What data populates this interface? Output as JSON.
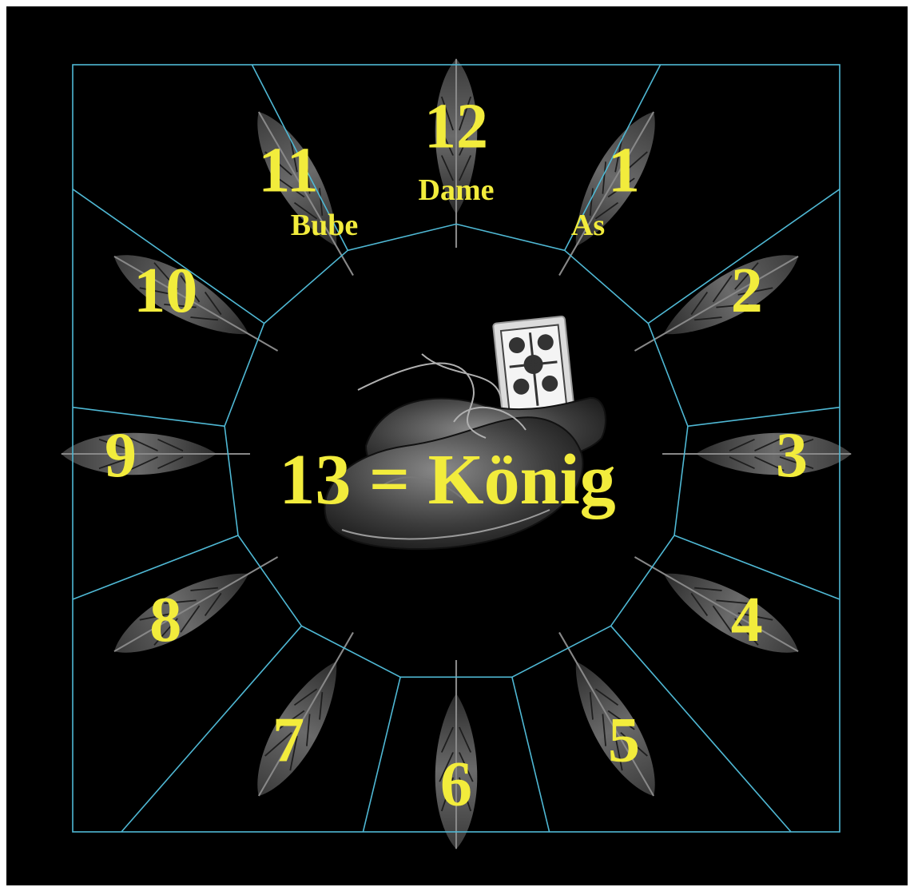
{
  "colors": {
    "background": "#000000",
    "lines": "#4fb8d4",
    "text": "#f2ec3c"
  },
  "hours": [
    {
      "number": "1",
      "label": "As"
    },
    {
      "number": "2",
      "label": ""
    },
    {
      "number": "3",
      "label": ""
    },
    {
      "number": "4",
      "label": ""
    },
    {
      "number": "5",
      "label": ""
    },
    {
      "number": "6",
      "label": ""
    },
    {
      "number": "7",
      "label": ""
    },
    {
      "number": "8",
      "label": ""
    },
    {
      "number": "9",
      "label": ""
    },
    {
      "number": "10",
      "label": ""
    },
    {
      "number": "11",
      "label": "Bube"
    },
    {
      "number": "12",
      "label": "Dame"
    }
  ],
  "center": {
    "text": "13 = König",
    "image": "shoes-with-playing-card"
  },
  "decoration": "feather-icon"
}
